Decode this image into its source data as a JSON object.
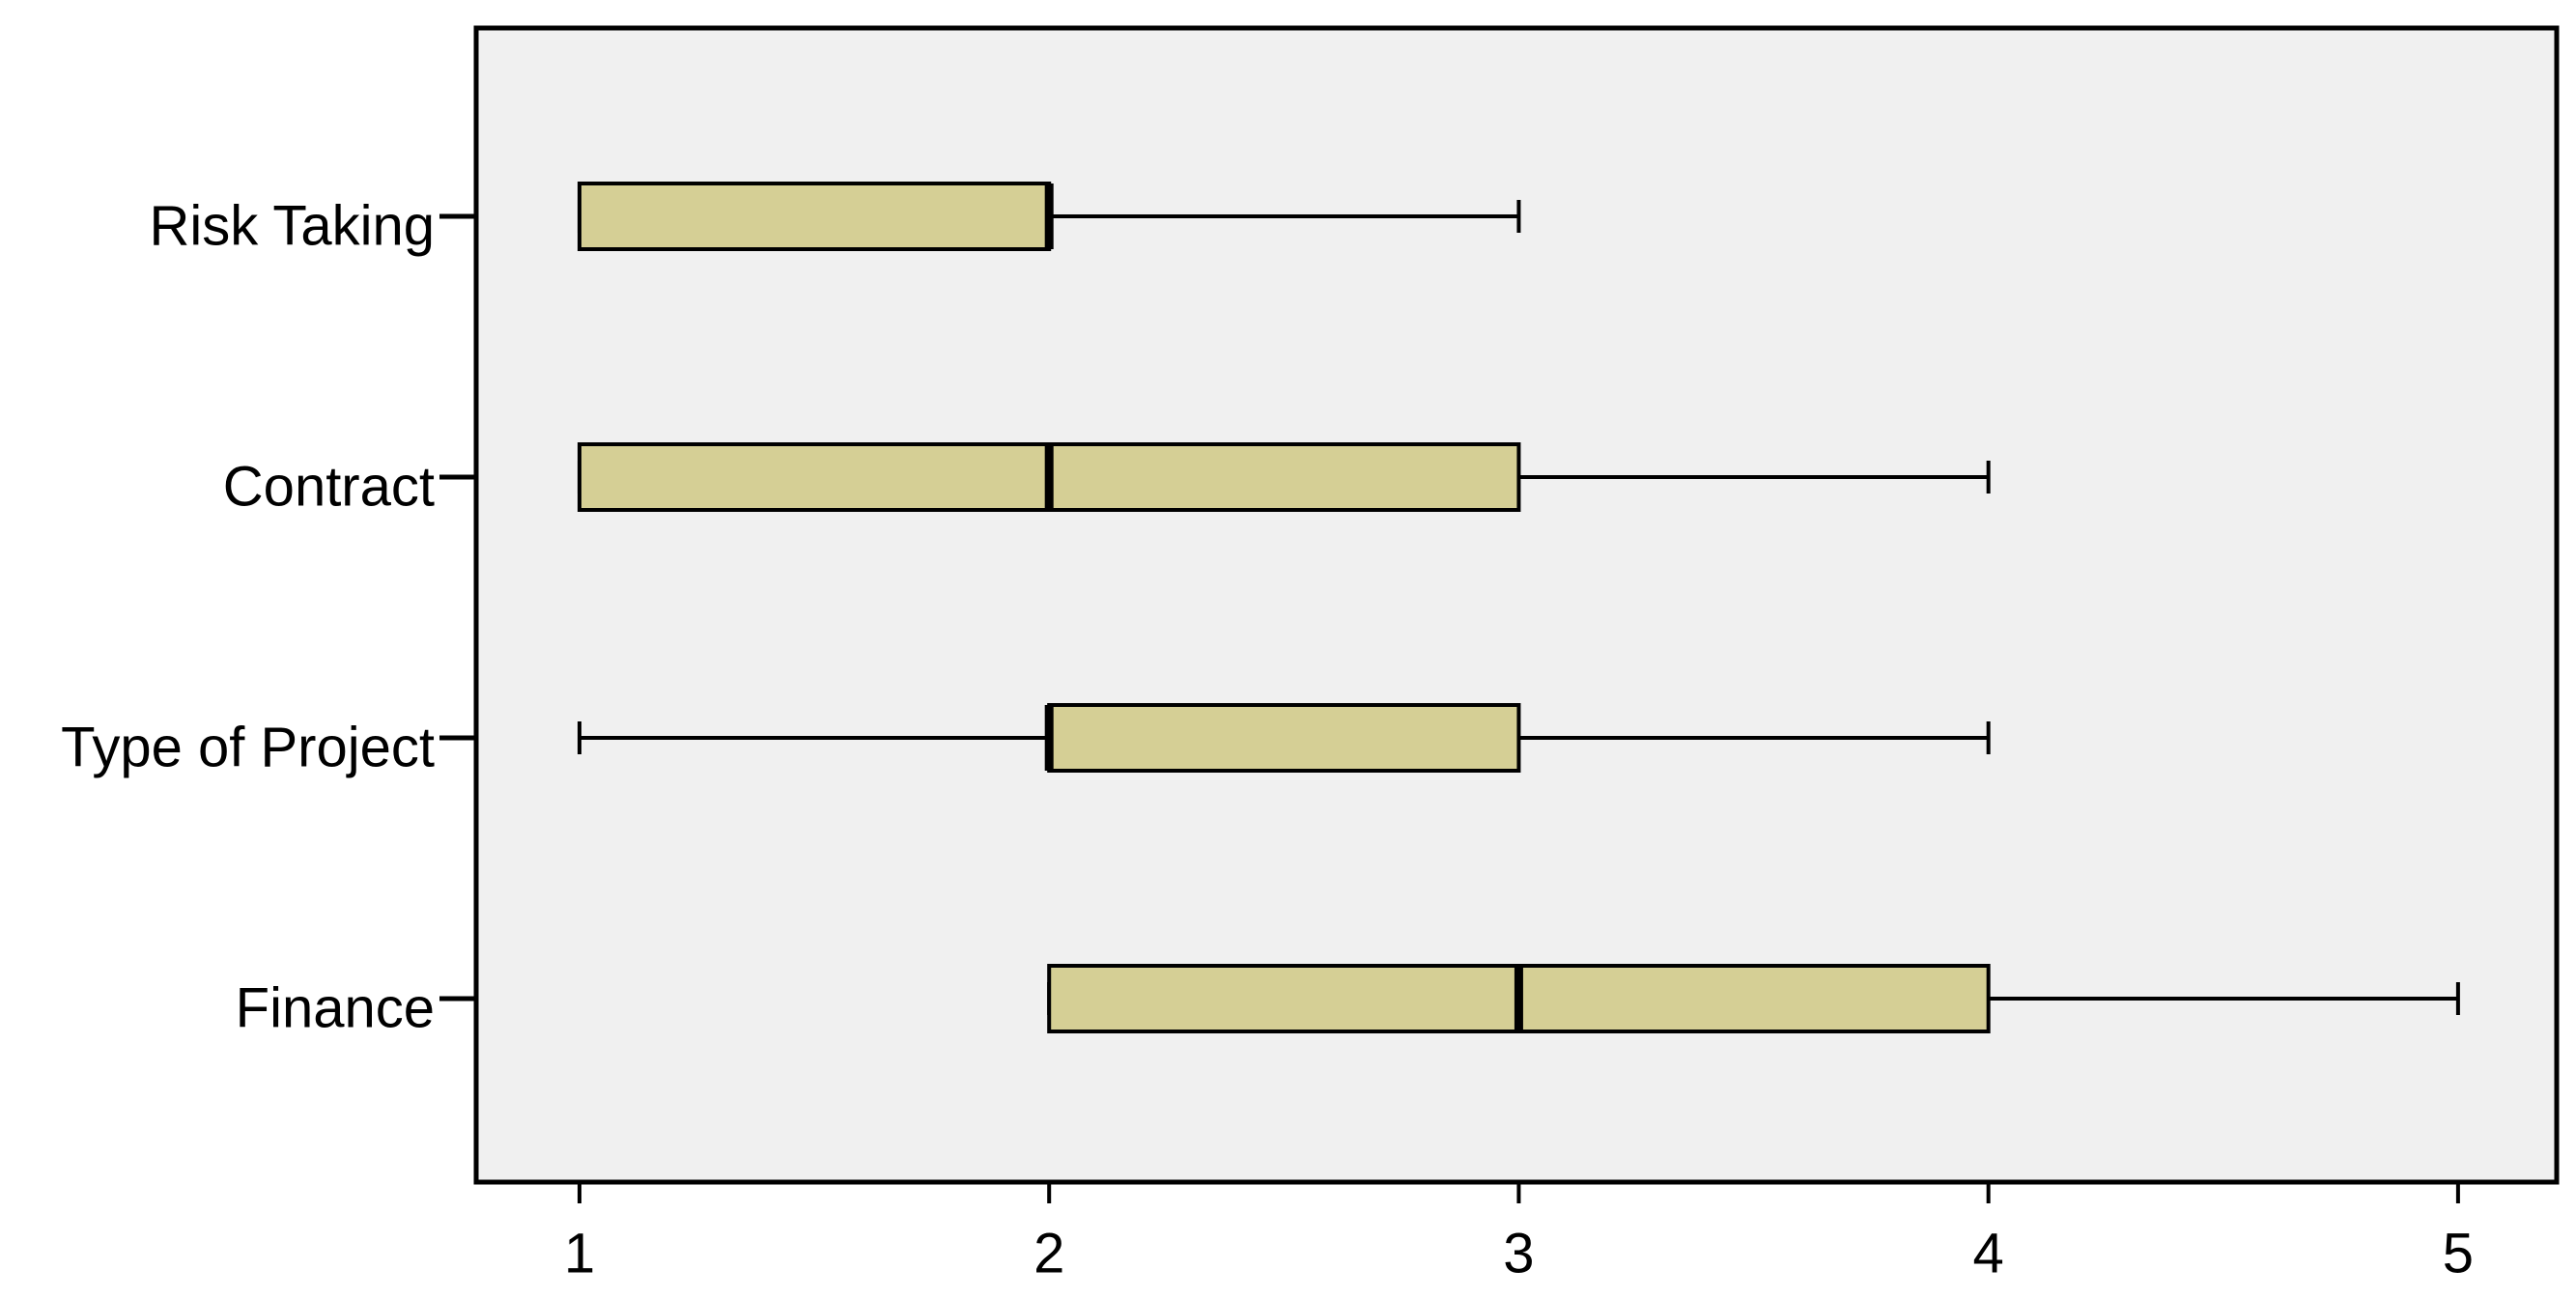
{
  "chart_data": {
    "type": "boxplot",
    "orientation": "horizontal",
    "categories": [
      "Risk Taking",
      "Contract",
      "Type of Project",
      "Finance"
    ],
    "min": [
      1,
      1,
      1,
      2
    ],
    "q1": [
      1,
      1,
      2,
      2
    ],
    "median": [
      2,
      2,
      2,
      3
    ],
    "q3": [
      2,
      3,
      3,
      4
    ],
    "max": [
      3,
      4,
      4,
      5
    ],
    "color": "#d5cf95",
    "background": "#f0f0f0",
    "xlim": [
      0.78,
      5.21
    ],
    "xticks": [
      1,
      2,
      3,
      4,
      5
    ],
    "grid": false
  }
}
